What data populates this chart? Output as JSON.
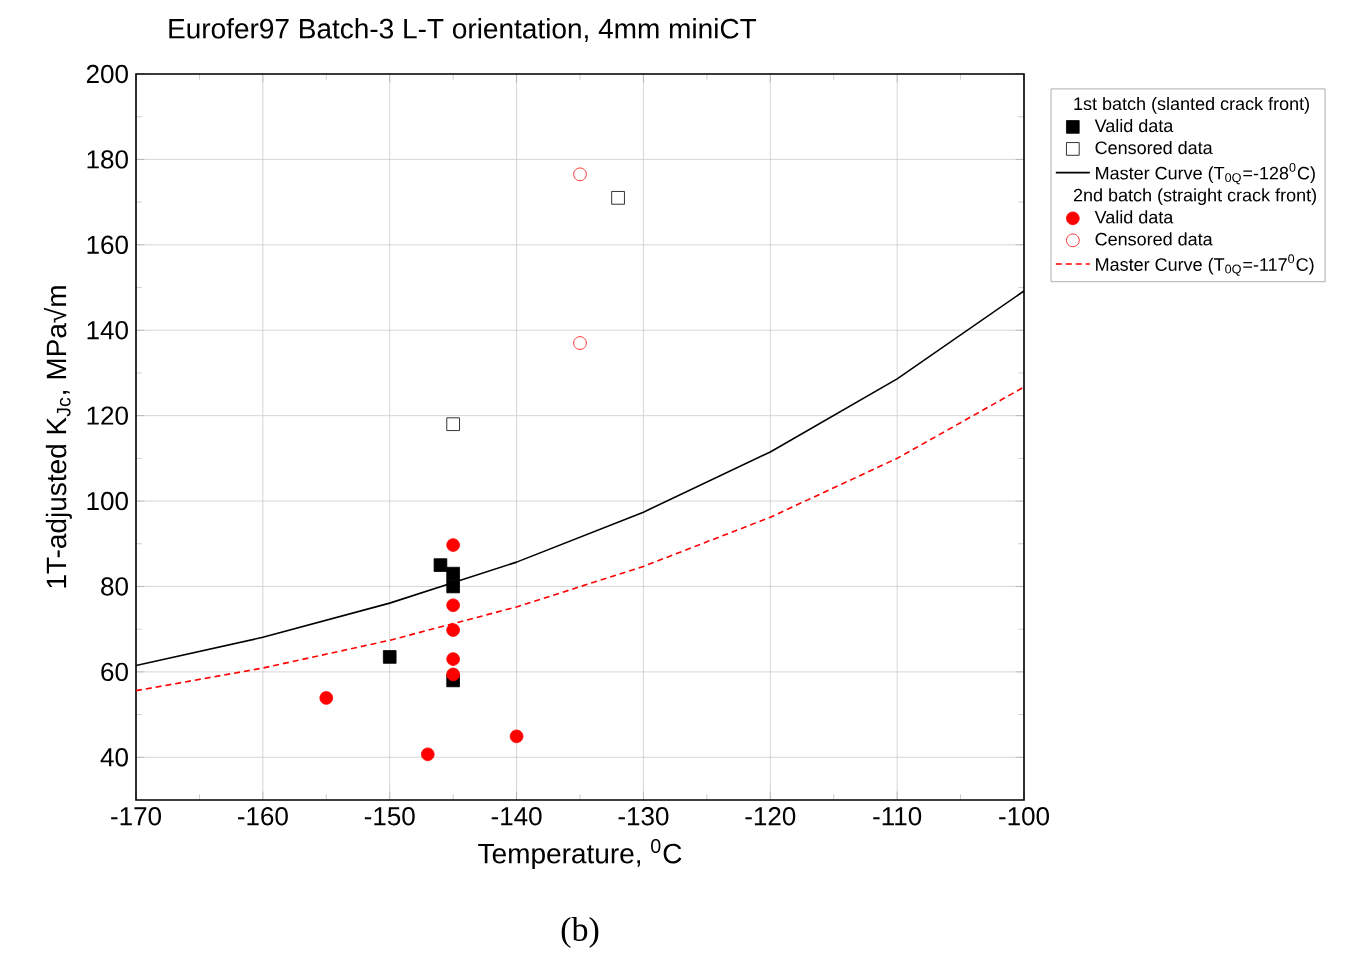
{
  "chart_data": {
    "type": "scatter",
    "title": "Eurofer97 Batch-3 L-T orientation, 4mm miniCT",
    "xlabel": "Temperature, $^{0}$C",
    "ylabel": "1T-adjusted K$_{Jc}$, MPa√m",
    "xlim": [
      -170,
      -100
    ],
    "xticks": [
      -170,
      -160,
      -150,
      -140,
      -130,
      -120,
      -110,
      -100
    ],
    "ylim": [
      30,
      200
    ],
    "yticks": [
      40,
      60,
      80,
      100,
      120,
      140,
      160,
      180,
      200
    ],
    "grid": true,
    "legend": "right",
    "annotations": [
      "1st batch (slanted crack front)",
      "2nd batch (straight crack front)",
      "(b)"
    ],
    "series": [
      {
        "name": "Valid data",
        "marker": "square",
        "color": "#000000",
        "x": [
          -150,
          -146,
          -145,
          -145,
          -145
        ],
        "values": [
          63.5,
          85,
          83,
          80,
          58
        ]
      },
      {
        "name": "Censored data",
        "marker": "square",
        "color": "#000000",
        "x": [
          -132,
          -145
        ],
        "values": [
          171,
          118
        ]
      },
      {
        "name": "Master Curve (T$_{0Q}$=-128$^{0}$C)",
        "type": "line",
        "line_style": "solid",
        "color": "#000000",
        "x": [
          -170,
          -160,
          -150,
          -140,
          -130,
          -120,
          -110,
          -100
        ],
        "values": [
          61.5,
          68.1,
          76.1,
          85.7,
          97.4,
          111.5,
          128.6,
          149.2
        ]
      },
      {
        "name": "Valid data",
        "marker": "circle",
        "color": "#ff0000",
        "x": [
          -145,
          -145,
          -145,
          -145,
          -145,
          -147,
          -140,
          -155
        ],
        "values": [
          89.7,
          75.6,
          69.8,
          63,
          59.4,
          40.7,
          44.9,
          53.9
        ]
      },
      {
        "name": "Censored data",
        "marker": "circle",
        "color": "#ff0000",
        "x": [
          -135,
          -135
        ],
        "values": [
          176.5,
          137
        ]
      },
      {
        "name": "Master Curve (T$_{0Q}$=-117$^{0}$C)",
        "type": "line",
        "line_style": "dashed",
        "color": "#ff0000",
        "x": [
          -170,
          -160,
          -150,
          -140,
          -130,
          -120,
          -110,
          -100
        ],
        "values": [
          55.6,
          60.9,
          67.4,
          75.2,
          84.7,
          96.2,
          110.0,
          126.7
        ]
      }
    ]
  }
}
